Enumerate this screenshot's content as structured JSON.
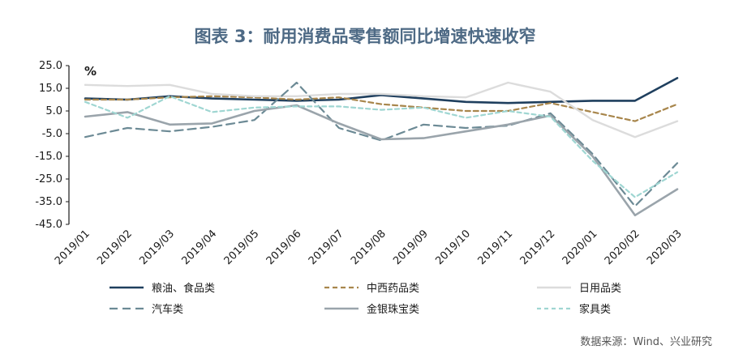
{
  "page": {
    "title": "图表 3：耐用消费品零售额同比增速快速收窄",
    "source": "数据来源：Wind、兴业研究"
  },
  "chart_data": {
    "type": "line",
    "title": "图表 3：耐用消费品零售额同比增速快速收窄",
    "ylabel": "%",
    "xlabel": "",
    "ylim": [
      -45,
      25
    ],
    "yticks": [
      25,
      15,
      5,
      -5,
      -15,
      -25,
      -35,
      -45
    ],
    "ytick_labels": [
      "25.0",
      "15.0",
      "5.0",
      "-5.0",
      "-15.0",
      "-25.0",
      "-35.0",
      "-45.0"
    ],
    "categories": [
      "2019/01",
      "2019/02",
      "2019/03",
      "2019/04",
      "2019/05",
      "2019/06",
      "2019/07",
      "2019/08",
      "2019/09",
      "2019/10",
      "2019/11",
      "2019/12",
      "2020/01",
      "2020/02",
      "2020/03"
    ],
    "grid": false,
    "legend_position": "bottom",
    "series": [
      {
        "name": "粮油、食品类",
        "color": "#1f3f5e",
        "dash": "solid",
        "width": 2.6,
        "values": [
          10.5,
          10.0,
          11.5,
          10.5,
          10.0,
          9.5,
          10.0,
          12.0,
          10.5,
          9.0,
          8.5,
          9.0,
          9.5,
          9.5,
          19.5
        ]
      },
      {
        "name": "中西药品类",
        "color": "#a8864c",
        "dash": "6,4",
        "width": 2.2,
        "values": [
          10.0,
          10.0,
          11.0,
          11.5,
          11.0,
          10.0,
          11.0,
          8.0,
          6.5,
          5.0,
          5.0,
          8.5,
          4.5,
          0.5,
          8.0
        ]
      },
      {
        "name": "日用品类",
        "color": "#dcdcdc",
        "dash": "solid",
        "width": 2.4,
        "values": [
          16.5,
          16.0,
          16.5,
          12.5,
          11.5,
          11.5,
          12.5,
          12.5,
          11.5,
          11.0,
          17.5,
          13.5,
          1.0,
          -6.5,
          0.5
        ]
      },
      {
        "name": "汽车类",
        "color": "#6c8a95",
        "dash": "10,6",
        "width": 2.2,
        "values": [
          -6.5,
          -2.5,
          -4.0,
          -2.0,
          1.0,
          17.5,
          -2.5,
          -8.0,
          -1.0,
          -2.5,
          -1.5,
          4.0,
          -14.0,
          -37.0,
          -18.0
        ]
      },
      {
        "name": "金银珠宝类",
        "color": "#9aa4ab",
        "dash": "solid",
        "width": 2.6,
        "values": [
          2.5,
          4.5,
          -1.0,
          -0.5,
          5.0,
          7.5,
          -0.5,
          -7.5,
          -7.0,
          -4.0,
          -1.0,
          3.0,
          -15.0,
          -41.0,
          -29.5
        ]
      },
      {
        "name": "家具类",
        "color": "#9fd6d2",
        "dash": "5,4",
        "width": 2.2,
        "values": [
          9.0,
          2.0,
          11.5,
          4.5,
          6.5,
          7.0,
          7.0,
          5.5,
          6.5,
          2.0,
          5.0,
          2.5,
          -17.0,
          -33.0,
          -22.0
        ]
      }
    ]
  }
}
